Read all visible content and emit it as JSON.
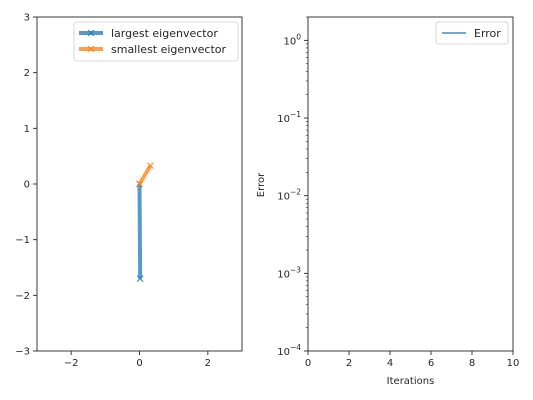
{
  "chart_data": [
    {
      "type": "line",
      "xlim": [
        -3,
        3
      ],
      "ylim": [
        -3,
        3
      ],
      "xticks": [
        -2,
        0,
        2
      ],
      "xtick_labels": [
        "−2",
        "0",
        "2"
      ],
      "yticks": [
        -3,
        -2,
        -1,
        0,
        1,
        2,
        3
      ],
      "ytick_labels": [
        "−3",
        "−2",
        "−1",
        "0",
        "1",
        "2",
        "3"
      ],
      "grid": false,
      "legend_position": "top-right",
      "series": [
        {
          "name": "largest eigenvector",
          "color": "#1f77b4",
          "marker": "x",
          "x": [
            0,
            0.02
          ],
          "y": [
            0,
            -1.7
          ]
        },
        {
          "name": "smallest eigenvector",
          "color": "#ff7f0e",
          "marker": "x",
          "x": [
            0,
            0.32
          ],
          "y": [
            0,
            0.33
          ]
        }
      ]
    },
    {
      "type": "line",
      "xlabel": "Iterations",
      "ylabel": "Error",
      "xlim": [
        0,
        10
      ],
      "ylim": [
        0.0001,
        2
      ],
      "yscale": "log",
      "xticks": [
        0,
        2,
        4,
        6,
        8,
        10
      ],
      "xtick_labels": [
        "0",
        "2",
        "4",
        "6",
        "8",
        "10"
      ],
      "ytick_exponents": [
        "0",
        "−1",
        "−2",
        "−3",
        "−4"
      ],
      "grid": false,
      "legend_position": "top-right",
      "series": [
        {
          "name": "Error",
          "color": "#1f77b4",
          "x": [],
          "y": []
        }
      ]
    }
  ]
}
